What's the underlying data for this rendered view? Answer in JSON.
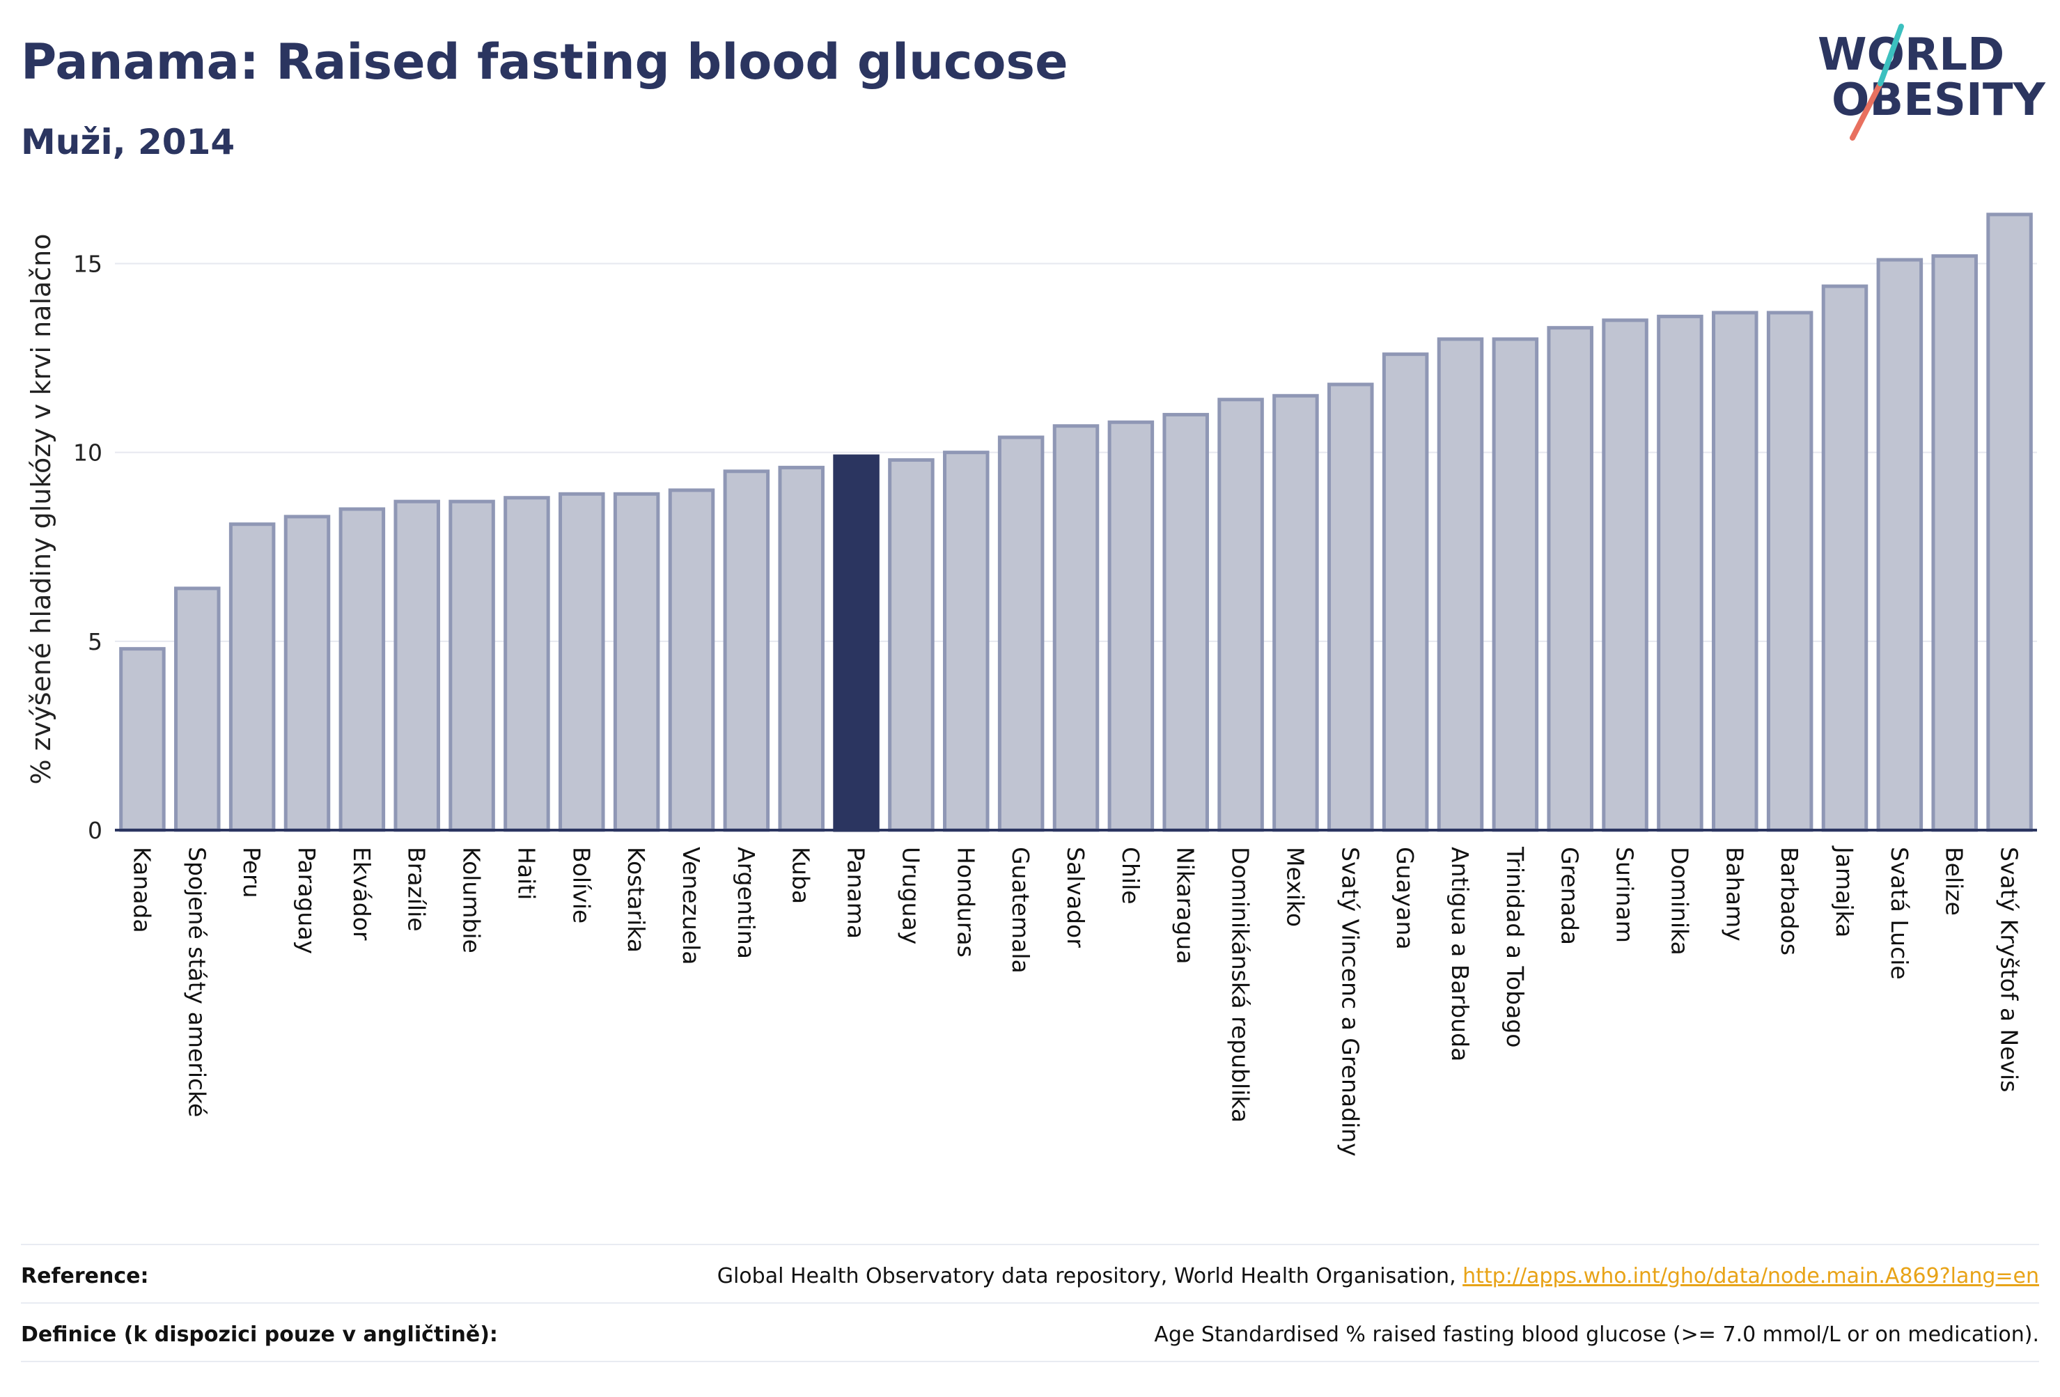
{
  "header": {
    "title": "Panama: Raised fasting blood glucose",
    "subtitle": "Muži, 2014"
  },
  "logo": {
    "line1": "WORLD",
    "line2": "OBESITY"
  },
  "colors": {
    "bar": "#c0c4d2",
    "bar_edge": "#8f97b5",
    "highlight": "#2b3560",
    "grid": "#e6e8ef",
    "axis": "#2b3560"
  },
  "chart_data": {
    "type": "bar",
    "ylabel": "% zvýšené hladiny glukózy v krvi nalačno",
    "ylim": [
      0,
      17
    ],
    "yticks": [
      0,
      5,
      10,
      15
    ],
    "grid": true,
    "highlight": "Panama",
    "categories": [
      "Kanada",
      "Spojené státy americké",
      "Peru",
      "Paraguay",
      "Ekvádor",
      "Brazílie",
      "Kolumbie",
      "Haiti",
      "Bolívie",
      "Kostarika",
      "Venezuela",
      "Argentina",
      "Kuba",
      "Panama",
      "Uruguay",
      "Honduras",
      "Guatemala",
      "Salvador",
      "Chile",
      "Nikaragua",
      "Dominikánská republika",
      "Mexiko",
      "Svatý Vincenc a Grenadiny",
      "Guayana",
      "Antigua a Barbuda",
      "Trinidad a Tobago",
      "Grenada",
      "Surinam",
      "Dominika",
      "Bahamy",
      "Barbados",
      "Jamajka",
      "Svatá Lucie",
      "Belize",
      "Svatý Kryštof a Nevis"
    ],
    "values": [
      4.8,
      6.4,
      8.1,
      8.3,
      8.5,
      8.7,
      8.7,
      8.8,
      8.9,
      8.9,
      9.0,
      9.5,
      9.6,
      9.9,
      9.8,
      10.0,
      10.4,
      10.7,
      10.8,
      11.0,
      11.4,
      11.5,
      11.8,
      12.6,
      13.0,
      13.0,
      13.3,
      13.5,
      13.6,
      13.7,
      13.7,
      14.4,
      15.1,
      15.2,
      16.3
    ]
  },
  "footer": {
    "reference_key": "Reference:",
    "reference_text": "Global Health Observatory data repository, World Health Organisation, ",
    "reference_link": "http://apps.who.int/gho/data/node.main.A869?lang=en",
    "definition_key": "Definice (k dispozici pouze v angličtině):",
    "definition_text": "Age Standardised % raised fasting blood glucose (>= 7.0 mmol/L or on medication)."
  }
}
